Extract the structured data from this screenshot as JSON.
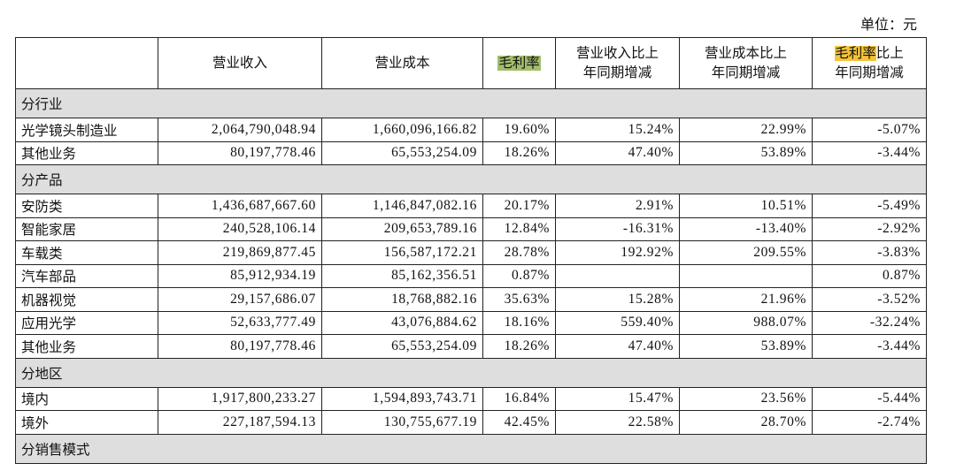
{
  "unit": "单位：元",
  "header": [
    [
      [
        "营业收入"
      ]
    ],
    [
      [
        "营业成本"
      ]
    ],
    [
      [
        "毛利率"
      ]
    ],
    [
      [
        "营业收入比上"
      ],
      [
        "年同期增减"
      ]
    ],
    [
      [
        "营业成本比上"
      ],
      [
        "年同期增减"
      ]
    ],
    [
      [
        "毛利率",
        "比上"
      ],
      [
        "年同期增减"
      ]
    ]
  ],
  "rows": [
    {
      "section": "分行业"
    },
    {
      "cells": [
        "光学镜头制造业",
        "2,064,790,048.94",
        "1,660,096,166.82",
        "19.60%",
        "15.24%",
        "22.99%",
        "-5.07%"
      ]
    },
    {
      "cells": [
        "其他业务",
        "80,197,778.46",
        "65,553,254.09",
        "18.26%",
        "47.40%",
        "53.89%",
        "-3.44%"
      ]
    },
    {
      "section": "分产品"
    },
    {
      "cells": [
        "安防类",
        "1,436,687,667.60",
        "1,146,847,082.16",
        "20.17%",
        "2.91%",
        "10.51%",
        "-5.49%"
      ]
    },
    {
      "cells": [
        "智能家居",
        "240,528,106.14",
        "209,653,789.16",
        "12.84%",
        "-16.31%",
        "-13.40%",
        "-2.92%"
      ]
    },
    {
      "cells": [
        "车载类",
        "219,869,877.45",
        "156,587,172.21",
        "28.78%",
        "192.92%",
        "209.55%",
        "-3.83%"
      ]
    },
    {
      "cells": [
        "汽车部品",
        "85,912,934.19",
        "85,162,356.51",
        "0.87%",
        null,
        null,
        "0.87%"
      ]
    },
    {
      "cells": [
        "机器视觉",
        "29,157,686.07",
        "18,768,882.16",
        "35.63%",
        "15.28%",
        "21.96%",
        "-3.52%"
      ]
    },
    {
      "cells": [
        "应用光学",
        "52,633,777.49",
        "43,076,884.62",
        "18.16%",
        "559.40%",
        "988.07%",
        "-32.24%"
      ]
    },
    {
      "cells": [
        "其他业务",
        "80,197,778.46",
        "65,553,254.09",
        "18.26%",
        "47.40%",
        "53.89%",
        "-3.44%"
      ]
    },
    {
      "section": "分地区"
    },
    {
      "cells": [
        "境内",
        "1,917,800,233.27",
        "1,594,893,743.71",
        "16.84%",
        "15.47%",
        "23.56%",
        "-5.44%"
      ]
    },
    {
      "cells": [
        "境外",
        "227,187,594.13",
        "130,755,677.19",
        "42.45%",
        "22.58%",
        "28.70%",
        "-2.74%"
      ]
    },
    {
      "section": "分销售模式"
    }
  ]
}
